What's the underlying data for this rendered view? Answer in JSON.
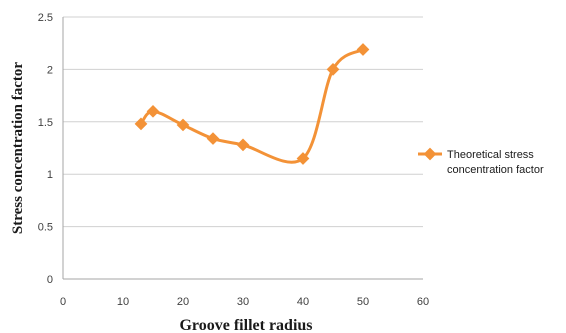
{
  "chart_data": {
    "type": "line",
    "xlabel": "Groove fillet radius",
    "ylabel": "Stress concentration factor",
    "xlim": [
      0,
      60
    ],
    "ylim": [
      0,
      2.5
    ],
    "x_ticks": [
      "0",
      "10",
      "20",
      "30",
      "40",
      "50",
      "60"
    ],
    "y_ticks": [
      "0",
      "0.5",
      "1",
      "1.5",
      "2",
      "2.5"
    ],
    "grid": "horizontal",
    "legend_position": "right",
    "smooth": true,
    "series": [
      {
        "name": "Theoretical stress concentration factor",
        "color": "#f39237",
        "marker": "diamond",
        "x": [
          13,
          15,
          20,
          25,
          30,
          40,
          45,
          50
        ],
        "y": [
          1.48,
          1.6,
          1.47,
          1.34,
          1.28,
          1.15,
          2.0,
          2.19
        ]
      }
    ]
  }
}
